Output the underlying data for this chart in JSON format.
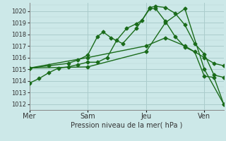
{
  "xlabel": "Pression niveau de la mer( hPa )",
  "background_color": "#cce8e8",
  "grid_color": "#aacccc",
  "line_color": "#1a6b1a",
  "ylim": [
    1011.5,
    1020.7
  ],
  "yticks": [
    1012,
    1013,
    1014,
    1015,
    1016,
    1017,
    1018,
    1019,
    1020
  ],
  "xtick_labels": [
    "Mer",
    "Sam",
    "Jeu",
    "Ven"
  ],
  "xtick_positions": [
    0,
    30,
    60,
    90
  ],
  "xlim": [
    0,
    100
  ],
  "vline_positions": [
    0,
    30,
    60,
    90
  ],
  "series": [
    {
      "x": [
        0,
        5,
        10,
        15,
        20,
        25,
        30,
        35,
        40,
        45,
        50,
        55,
        58,
        62,
        65,
        70,
        75,
        80,
        85,
        90,
        95,
        100
      ],
      "y": [
        1013.8,
        1014.2,
        1014.7,
        1015.1,
        1015.2,
        1015.4,
        1015.6,
        1015.6,
        1016.0,
        1017.5,
        1018.5,
        1018.9,
        1019.2,
        1020.3,
        1020.4,
        1020.3,
        1019.8,
        1018.8,
        1017.2,
        1016.3,
        1014.5,
        1014.3
      ]
    },
    {
      "x": [
        0,
        10,
        20,
        25,
        30,
        35,
        38,
        42,
        48,
        55,
        62,
        65,
        70,
        75,
        80,
        85,
        90,
        95,
        100
      ],
      "y": [
        1015.1,
        1015.3,
        1015.5,
        1015.8,
        1016.2,
        1017.8,
        1018.2,
        1017.7,
        1017.2,
        1018.5,
        1020.2,
        1020.2,
        1019.1,
        1017.8,
        1016.9,
        1016.5,
        1014.4,
        1014.3,
        1012.0
      ]
    },
    {
      "x": [
        0,
        30,
        60,
        70,
        80,
        90,
        95,
        100
      ],
      "y": [
        1015.1,
        1016.0,
        1017.0,
        1017.7,
        1017.0,
        1016.0,
        1015.5,
        1015.3
      ]
    },
    {
      "x": [
        0,
        30,
        60,
        70,
        80,
        90,
        100
      ],
      "y": [
        1015.1,
        1015.2,
        1016.5,
        1019.0,
        1020.2,
        1015.0,
        1012.0
      ]
    }
  ],
  "marker": "D",
  "markersize": 2.5,
  "linewidth": 1.0,
  "xlabel_fontsize": 7,
  "tick_labelsize": 6
}
